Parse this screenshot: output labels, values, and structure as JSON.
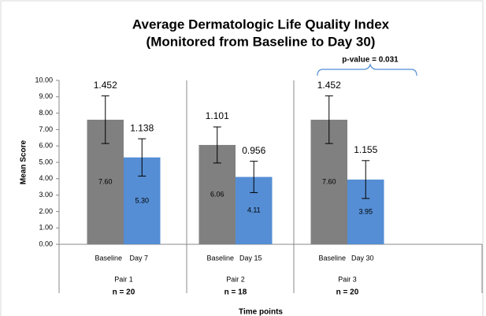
{
  "chart_data": {
    "type": "bar",
    "title": [
      "Average Dermatologic Life Quality Index",
      "(Monitored from Baseline to Day 30)"
    ],
    "y_label": "Mean Score",
    "x_label": "Time points",
    "categories": [
      "Baseline",
      "Day 7",
      "Baseline",
      "Day 15",
      "Baseline",
      "Day 30"
    ],
    "values": [
      7.6,
      5.3,
      6.06,
      4.11,
      7.6,
      3.95
    ],
    "value_labels": [
      "7.60",
      "5.30",
      "6.06",
      "4.11",
      "7.60",
      "3.95"
    ],
    "errors": [
      1.452,
      1.138,
      1.101,
      0.956,
      1.452,
      1.155
    ],
    "colors": [
      "#808080",
      "#558ed5",
      "#808080",
      "#558ed5",
      "#808080",
      "#558ed5"
    ],
    "groups": [
      {
        "label": "Pair 1",
        "n": "n = 20"
      },
      {
        "label": "Pair 2",
        "n": "n = 18"
      },
      {
        "label": "Pair 3",
        "n": "n = 20"
      }
    ],
    "annotation": "p-value = 0.031",
    "ylim": [
      0,
      10
    ],
    "yticks": [
      {
        "value": 0,
        "label": "0.00"
      },
      {
        "value": 1,
        "label": "1.00"
      },
      {
        "value": 2,
        "label": "2.00"
      },
      {
        "value": 3,
        "label": "3.00"
      },
      {
        "value": 4,
        "label": "4.00"
      },
      {
        "value": 5,
        "label": "5.00"
      },
      {
        "value": 6,
        "label": "6.00"
      },
      {
        "value": 7,
        "label": "7.00"
      },
      {
        "value": 8,
        "label": "8.00"
      },
      {
        "value": 9,
        "label": "9.00"
      },
      {
        "value": 10,
        "label": "10.00"
      }
    ]
  }
}
